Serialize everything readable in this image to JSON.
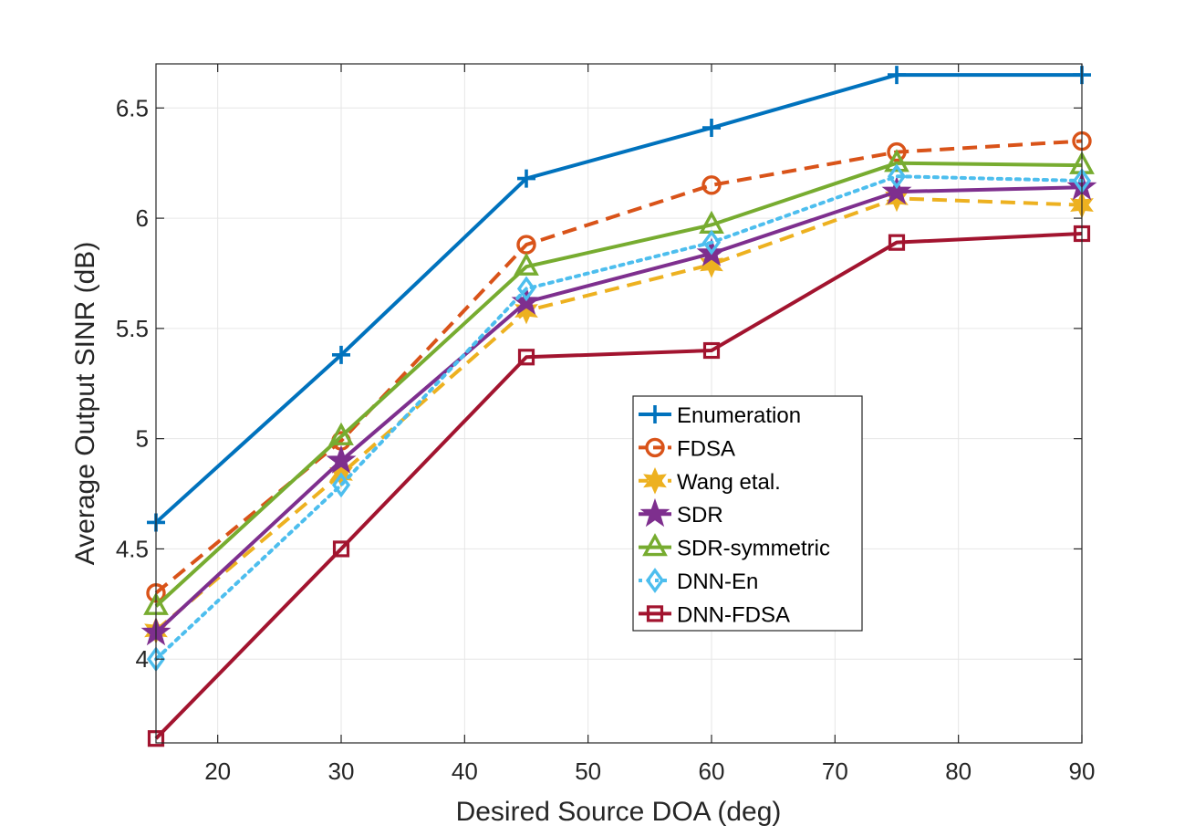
{
  "chart_data": {
    "type": "line",
    "title": "",
    "xlabel": "Desired Source DOA (deg)",
    "ylabel": "Average Output SINR (dB)",
    "xlim": [
      15,
      90
    ],
    "ylim": [
      3.62,
      6.7
    ],
    "xticks": [
      20,
      30,
      40,
      50,
      60,
      70,
      80,
      90
    ],
    "yticks": [
      4,
      4.5,
      5,
      5.5,
      6,
      6.5
    ],
    "xtick_labels": [
      "20",
      "30",
      "40",
      "50",
      "60",
      "70",
      "80",
      "90"
    ],
    "ytick_labels": [
      "4",
      "4.5",
      "5",
      "5.5",
      "6",
      "6.5"
    ],
    "grid": true,
    "legend_position": "center-right",
    "x": [
      15,
      30,
      45,
      60,
      75,
      90
    ],
    "series": [
      {
        "name": "Enumeration",
        "values": [
          4.62,
          5.38,
          6.18,
          6.41,
          6.65,
          6.65
        ],
        "color": "#0072BD",
        "dash": "solid",
        "marker": "plus"
      },
      {
        "name": "FDSA",
        "values": [
          4.3,
          4.99,
          5.88,
          6.15,
          6.3,
          6.35
        ],
        "color": "#D95319",
        "dash": "dashed",
        "marker": "circle"
      },
      {
        "name": "Wang etal.",
        "values": [
          4.13,
          4.84,
          5.58,
          5.79,
          6.09,
          6.06
        ],
        "color": "#EDB120",
        "dash": "dashed",
        "marker": "hexagram"
      },
      {
        "name": "SDR",
        "values": [
          4.12,
          4.9,
          5.62,
          5.84,
          6.12,
          6.14
        ],
        "color": "#7E2F8E",
        "dash": "solid",
        "marker": "pentagram"
      },
      {
        "name": "SDR-symmetric",
        "values": [
          4.24,
          5.01,
          5.78,
          5.97,
          6.25,
          6.24
        ],
        "color": "#77AC30",
        "dash": "solid",
        "marker": "triangle"
      },
      {
        "name": "DNN-En",
        "values": [
          4.0,
          4.79,
          5.68,
          5.89,
          6.19,
          6.17
        ],
        "color": "#4DBEEE",
        "dash": "dotted",
        "marker": "diamond"
      },
      {
        "name": "DNN-FDSA",
        "values": [
          3.64,
          4.5,
          5.37,
          5.4,
          5.89,
          5.93
        ],
        "color": "#A2142F",
        "dash": "solid",
        "marker": "square"
      }
    ]
  }
}
